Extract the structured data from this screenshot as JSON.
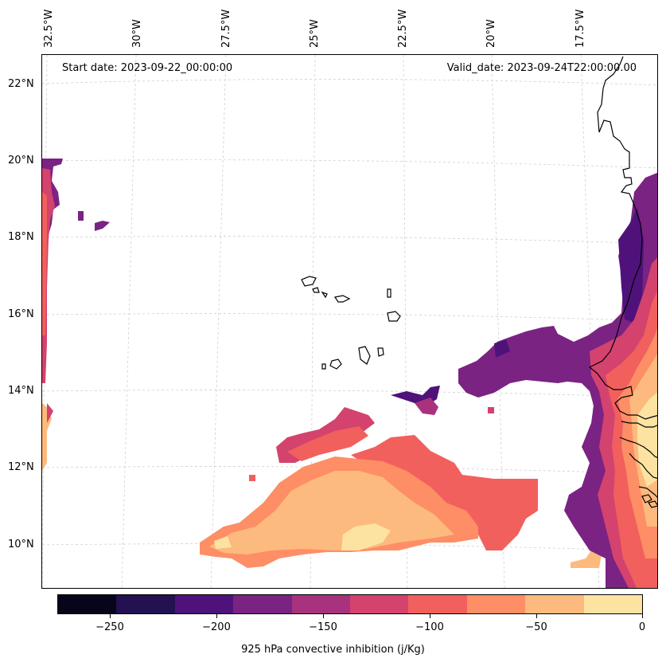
{
  "map": {
    "start_date": "Start date: 2023-09-22_00:00:00",
    "valid_date": "Valid_date: 2023-09-24T22:00:00.00",
    "lon_labels": [
      "32.5°W",
      "30°W",
      "27.5°W",
      "25°W",
      "22.5°W",
      "20°W",
      "17.5°W"
    ],
    "lat_labels": [
      "22°N",
      "20°N",
      "18°N",
      "16°N",
      "14°N",
      "12°N",
      "10°N"
    ],
    "colors": {
      "cmap": [
        "#06051a",
        "#231151",
        "#4f127b",
        "#7b2382",
        "#a8327d",
        "#d3436e",
        "#f1605d",
        "#fe8e65",
        "#fdba7e",
        "#fde3a2"
      ],
      "coast": "#000000",
      "grid": "#c9c9c9"
    }
  },
  "colorbar": {
    "ticks": [
      "−250",
      "−200",
      "−150",
      "−100",
      "−50",
      "0"
    ],
    "title": "925 hPa convective inhibition (j/Kg)",
    "range": [
      -275,
      0
    ]
  }
}
